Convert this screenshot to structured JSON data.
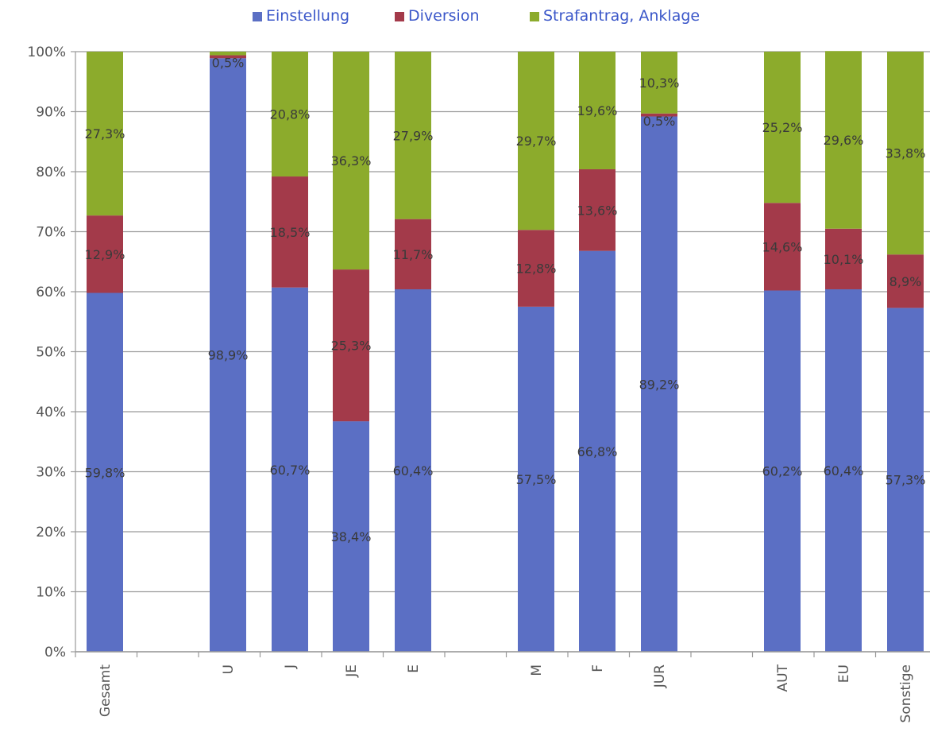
{
  "chart_data": {
    "type": "bar",
    "stacked": true,
    "percent_stacked": true,
    "legend_position": "top",
    "grid": true,
    "ylim": [
      0,
      100
    ],
    "yticks": [
      "0%",
      "10%",
      "20%",
      "30%",
      "40%",
      "50%",
      "60%",
      "70%",
      "80%",
      "90%",
      "100%"
    ],
    "categories": [
      "Gesamt",
      "U",
      "J",
      "JE",
      "E",
      "M",
      "F",
      "JUR",
      "AUT",
      "EU",
      "Sonstige"
    ],
    "series": [
      {
        "name": "Einstellung",
        "color": "#5b6fc4",
        "values": [
          59.8,
          98.9,
          60.7,
          38.4,
          60.4,
          57.5,
          66.8,
          89.2,
          60.2,
          60.4,
          57.3
        ],
        "labels": [
          "59,8%",
          "98,9%",
          "60,7%",
          "38,4%",
          "60,4%",
          "57,5%",
          "66,8%",
          "89,2%",
          "60,2%",
          "60,4%",
          "57,3%"
        ]
      },
      {
        "name": "Diversion",
        "color": "#a33a4a",
        "values": [
          12.9,
          0.5,
          18.5,
          25.3,
          11.7,
          12.8,
          13.6,
          0.5,
          14.6,
          10.1,
          8.9
        ],
        "labels": [
          "12,9%",
          "0,5%",
          "18,5%",
          "25,3%",
          "11,7%",
          "12,8%",
          "13,6%",
          "0,5%",
          "14,6%",
          "10,1%",
          "8,9%"
        ]
      },
      {
        "name": "Strafantrag, Anklage",
        "color": "#8cab2c",
        "values": [
          27.3,
          0.6,
          20.8,
          36.3,
          27.9,
          29.7,
          19.6,
          10.3,
          25.2,
          29.6,
          33.8
        ],
        "labels": [
          "27,3%",
          "",
          "20,8%",
          "36,3%",
          "27,9%",
          "29,7%",
          "19,6%",
          "10,3%",
          "25,2%",
          "29,6%",
          "33,8%"
        ]
      }
    ]
  }
}
